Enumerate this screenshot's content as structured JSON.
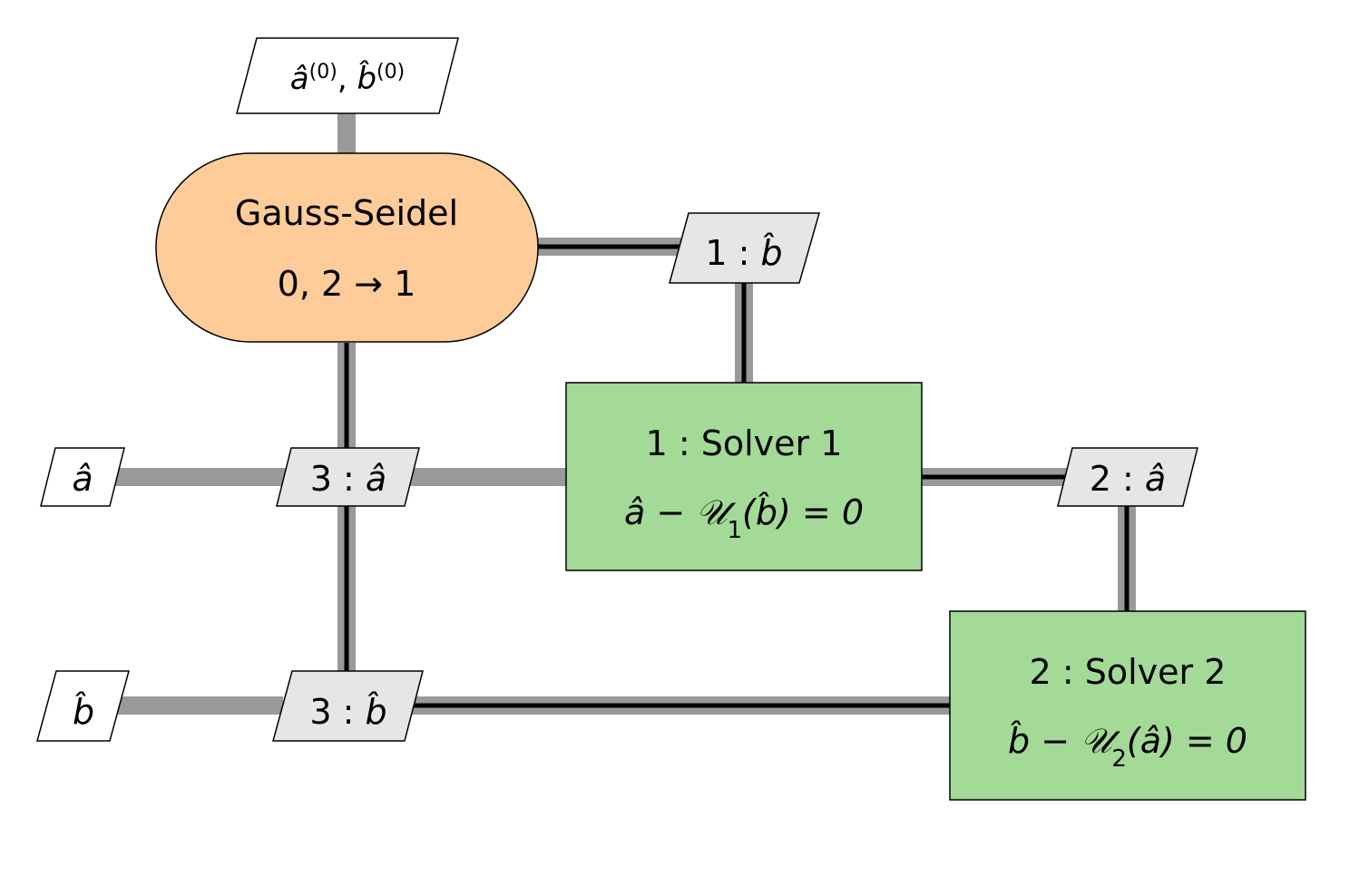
{
  "colors": {
    "driver_fill": "#fdcc99",
    "solver_fill": "#a3da97",
    "data_fill": "#e6e6e6",
    "io_fill": "#ffffff",
    "thick_line": "#999999",
    "thin_line": "#000000"
  },
  "input": {
    "a": "â",
    "a_sup": "(0)",
    "sep": ", ",
    "b": "b̂",
    "b_sup": "(0)"
  },
  "driver": {
    "title": "Gauss-Seidel",
    "sequence": "0, 2 → 1"
  },
  "data_b_to_solver1": {
    "prefix": "1 : ",
    "var": "b̂"
  },
  "solver1": {
    "title": "1 : Solver 1",
    "eq_lhs": "â − ",
    "eq_op": "𝒰",
    "eq_sub": "1",
    "eq_arg": "(b̂) = 0"
  },
  "data_a_to_solver2": {
    "prefix": "2 : ",
    "var": "â"
  },
  "solver2": {
    "title": "2 : Solver 2",
    "eq_lhs": "b̂ − ",
    "eq_op": "𝒰",
    "eq_sub": "2",
    "eq_arg": "(â) = 0"
  },
  "data_a_out": {
    "prefix": "3 : ",
    "var": "â"
  },
  "data_b_out": {
    "prefix": "3 : ",
    "var": "b̂"
  },
  "output_a": {
    "var": "â"
  },
  "output_b": {
    "var": "b̂"
  }
}
